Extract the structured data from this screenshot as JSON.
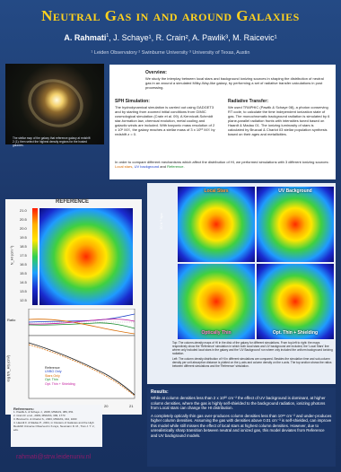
{
  "title": "Neutral Gas in and around Galaxies",
  "authors": {
    "main": "A. Rahmati",
    "main_sup": "1",
    "rest": ", J. Schaye¹, R. Crain², A. Pawlik³, M. Raicevic¹"
  },
  "affiliations": "¹ Leiden Observatory   ² Swinburne University   ³ University of Texas, Austin",
  "galaxy_caption": "The stellar map of the galaxy that reference galaxy at redshift 2 (1); then select the highest density regions for the hosted galaxies.",
  "overview": {
    "heading": "Overview:",
    "text": "We study the interplay between local stars and background ionizing sources in shaping the distribution of neutral gas in an around a simulated Milky-Way-like galaxy, by performing a set of radiative transfer calculations in post processing."
  },
  "sph": {
    "heading": "SPH Simulation:",
    "text": "The hydrodynamical simulation is carried out using GADGET3 and by starting from zoomed initial conditions from GIMIC cosmological simulation (Crain et al. 09). A Kennicutt-Schmidt star-formation law, chemical evolution, metal cooling and galactic winds are included. With baryonic mass resolution of 2 x 10⁵ M☉, the galaxy reaches a stellar mass of 3 x 10¹⁰ M☉ by redshift z = 0."
  },
  "rt": {
    "heading": "Radiative Transfer:",
    "text": "We used TRAPHIC (Pawlik & Schaye 08), a photon conserving RT code, to calculate the time independent ionization state of gas. The monochromatic background radiation is simulated by 6 plane-parallel radiation fronts with intensities tuned based on Haardt & Madau 01. The ionizing luminosity of stars is calculated by Bruzual & Charlot 03 stellar population synthesis based on their ages and metallicities."
  },
  "intro": {
    "text": "In order to compare different mechanisms which affect the distribution of HI, we performed simulations with 3 different ionizing sources:",
    "local": "Local stars",
    "uvb": "UV background",
    "ref": "Reference"
  },
  "maps": {
    "reference": "REFERENCE",
    "local_stars": "Local Stars",
    "uv_background": "UV Background",
    "optically_thin": "Optically Thin",
    "opt_thin_shielding": "Opt. Thin + Shielding",
    "scale": "20 h⁻¹ kpc"
  },
  "colorbar": {
    "label": "N_HI (cm⁻²)",
    "ticks": [
      "21.0",
      "20.5",
      "20.0",
      "19.5",
      "18.5",
      "17.5",
      "16.5",
      "15.5",
      "14.5",
      "13.5",
      "12.5"
    ]
  },
  "plot": {
    "ratio_label": "Ratio",
    "ratio_ticks": [
      "1.6",
      "1.4",
      "1.2",
      "1.0",
      "0.8",
      "0.6",
      "0.4"
    ],
    "f_label": "log f(N_HI) (cm²)",
    "f_ticks": [
      "-10",
      "-15",
      "-20",
      "-25"
    ],
    "x_label": "log (N_HI (cm⁻²))",
    "x_ticks": [
      "17",
      "18",
      "19",
      "20",
      "21"
    ],
    "legend": [
      "Reference",
      "UVBG Only",
      "Stars Only",
      "Opt. Thin",
      "Opt. Thin + Shielding"
    ]
  },
  "caption": {
    "top": "Top: The column-density maps of HI in the disk of the galaxy for different simulations. From top-left to right: the maps respectively show the 'Reference' simulation in which both local stars and UV background are included, the 'Local Stars' line where only included local stars in the galaxy and the 'UV Background' run where only included the uniform background ionizing radiation.",
    "left": "Left: The column density distribution of HI in different simulations are compared. Besides the simulation time and sub-column density per unit absorption distance is plotted on the y-axis and column density on the x-axis. The top section shows the ratios between different simulations and the 'Reference' simulation."
  },
  "results": {
    "heading": "Results:",
    "p1": "While at column densities less than 2 x 10²⁰ cm⁻² the effect of UV background is dominant, at higher column densities, where the gas is highly self-shielded to the background radiation, ionizing photons from Local stars can change the HI distribution.",
    "p2": "A completely optically thin gas over-produces column densities less than 10¹⁸ cm⁻² and under-produces higher column densities. Assuming the gas with densities above 0.01 cm⁻³ is self-shielded, can improve this model while still misses the effect of local stars at highest column densities. However, due to unrealistically sharp transition between neutral and ionized gas, this model deviates from Reference and UV background models."
  },
  "references": {
    "heading": "References:",
    "items": [
      "1. Pawlik A. & Schaye J., 2008, MNRAS, 389, 651",
      "2. Crain R. et al., 2009, MNRAS, 399, 1773",
      "3. Bruzual G. & Charlot S., 2003, MNRAS, 344, 1000",
      "4. Haardt F. & Madau P., 2001, in Clusters of Galaxies and the High Redshift Universe Observed in X-rays, Neumann D. M., Tran J. T. V., eds."
    ]
  },
  "email": "rahmati@strw.leidenuniv.nl"
}
